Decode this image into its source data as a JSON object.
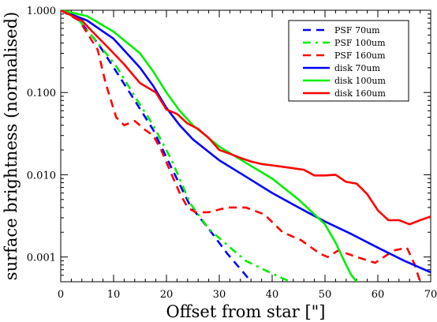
{
  "chart_data": {
    "type": "line",
    "xlabel": "Offset from star [\"]",
    "ylabel": "surface brightness (normalised)",
    "xlim": [
      0,
      70
    ],
    "ylim": [
      0.0005,
      1.0
    ],
    "yscale": "log",
    "grid": false,
    "legend_placement": "top-right",
    "x_ticks": [
      0,
      10,
      20,
      30,
      40,
      50,
      60,
      70
    ],
    "x_tick_labels": [
      "0",
      "10",
      "20",
      "30",
      "40",
      "50",
      "60",
      "70"
    ],
    "y_ticks": [
      0.001,
      0.01,
      0.1,
      1.0
    ],
    "y_tick_labels": [
      "0.001",
      "0.010",
      "0.100",
      "1.000"
    ],
    "series": [
      {
        "name": "PSF 70um",
        "color": "#0000ff",
        "dash": "dashed",
        "x": [
          0,
          3.5,
          7,
          10.5,
          14,
          17.5,
          21,
          24.5,
          28,
          31.5,
          35,
          36
        ],
        "y": [
          1.0,
          0.75,
          0.4,
          0.18,
          0.08,
          0.035,
          0.012,
          0.0042,
          0.0022,
          0.0011,
          0.0006,
          0.0005
        ]
      },
      {
        "name": "PSF 100um",
        "color": "#00ee00",
        "dash": "dashdot",
        "x": [
          0,
          3.5,
          7,
          10.5,
          14,
          17.5,
          21,
          24.5,
          28,
          31.5,
          35,
          38.5,
          42,
          43.5
        ],
        "y": [
          1.0,
          0.75,
          0.4,
          0.21,
          0.09,
          0.04,
          0.015,
          0.0045,
          0.0022,
          0.0014,
          0.0009,
          0.0007,
          0.00055,
          0.0005
        ]
      },
      {
        "name": "PSF 160um",
        "color": "#ff0000",
        "dash": "dashed",
        "x": [
          0,
          3.5,
          7,
          8.5,
          10.5,
          12,
          14,
          16,
          17.5,
          19,
          21,
          22.5,
          24,
          25.5,
          28,
          31.5,
          35,
          38.5,
          42,
          45.5,
          49,
          50.5,
          52.5,
          56,
          59.5,
          63,
          65.5,
          67,
          68
        ],
        "y": [
          1.0,
          0.75,
          0.33,
          0.13,
          0.05,
          0.04,
          0.045,
          0.035,
          0.03,
          0.02,
          0.01,
          0.006,
          0.004,
          0.0035,
          0.0035,
          0.004,
          0.004,
          0.0033,
          0.002,
          0.0016,
          0.0011,
          0.001,
          0.0012,
          0.001,
          0.00085,
          0.0012,
          0.0013,
          0.0008,
          0.0005
        ]
      },
      {
        "name": "disk 70um",
        "color": "#0000ff",
        "dash": "solid",
        "x": [
          0,
          5,
          10,
          15,
          17.5,
          20,
          22.5,
          25,
          30,
          35,
          40,
          45,
          50,
          55,
          60,
          65,
          70
        ],
        "y": [
          1.0,
          0.75,
          0.45,
          0.2,
          0.12,
          0.065,
          0.04,
          0.027,
          0.015,
          0.0095,
          0.006,
          0.004,
          0.0027,
          0.0019,
          0.0013,
          0.0009,
          0.00065
        ]
      },
      {
        "name": "disk 100um",
        "color": "#00ee00",
        "dash": "solid",
        "x": [
          0,
          5,
          10,
          15,
          17.5,
          20,
          22.5,
          25,
          30,
          35,
          40,
          45,
          50,
          52,
          54,
          55,
          56
        ],
        "y": [
          1.0,
          0.85,
          0.55,
          0.3,
          0.18,
          0.1,
          0.06,
          0.04,
          0.022,
          0.014,
          0.009,
          0.005,
          0.0025,
          0.0015,
          0.0008,
          0.0006,
          0.0005
        ]
      },
      {
        "name": "disk 160um",
        "color": "#ff0000",
        "dash": "solid",
        "x": [
          0,
          4,
          6,
          9,
          12,
          15,
          18,
          20,
          22,
          24,
          26,
          28,
          30,
          32,
          34,
          36,
          38,
          40,
          42,
          44,
          46,
          48,
          50,
          52,
          54,
          56,
          58,
          60,
          62,
          64,
          66,
          68,
          70
        ],
        "y": [
          1.0,
          0.75,
          0.55,
          0.35,
          0.22,
          0.13,
          0.1,
          0.062,
          0.055,
          0.042,
          0.036,
          0.028,
          0.02,
          0.018,
          0.016,
          0.0145,
          0.0135,
          0.013,
          0.0125,
          0.012,
          0.0115,
          0.0098,
          0.0098,
          0.01,
          0.0082,
          0.0078,
          0.0058,
          0.0037,
          0.0028,
          0.0028,
          0.0025,
          0.0028,
          0.0031
        ]
      }
    ]
  }
}
